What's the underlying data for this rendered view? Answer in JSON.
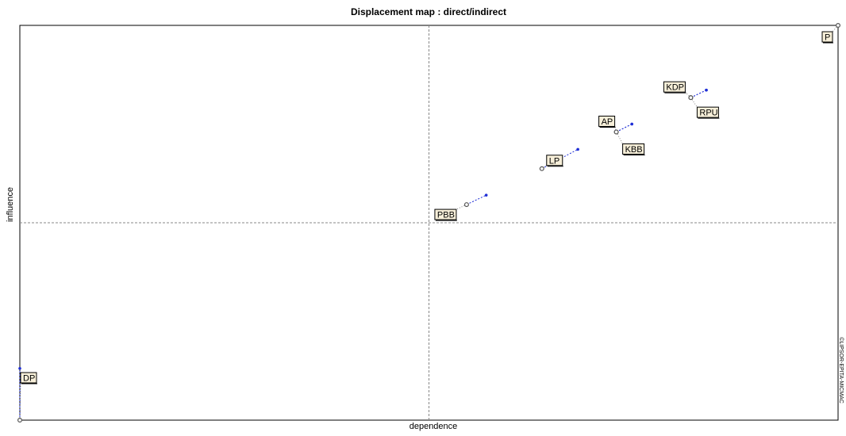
{
  "chart_data": {
    "type": "scatter",
    "title": "Displacement map :  direct/indirect",
    "xlabel": "dependence",
    "ylabel": "influence",
    "copyright": "©LIPSOR-EPITA-MICMAC",
    "xlim": [
      0,
      100
    ],
    "ylim": [
      0,
      100
    ],
    "reference_lines": {
      "x": 50,
      "y": 50
    },
    "grid": false,
    "colors": {
      "direct_marker": "#555555",
      "indirect_marker": "#1f2fd6",
      "label_fill": "#f7efd9",
      "frame": "#000000",
      "guide": "#888888"
    },
    "variables": [
      {
        "name": "P",
        "direct": [
          100,
          100
        ],
        "indirect": [
          100,
          100
        ]
      },
      {
        "name": "KDP",
        "direct": [
          82.0,
          81.7
        ],
        "indirect": [
          83.9,
          83.6
        ]
      },
      {
        "name": "RPU",
        "direct": [
          82.0,
          81.7
        ],
        "indirect": [
          83.9,
          83.6
        ]
      },
      {
        "name": "AP",
        "direct": [
          72.9,
          73.0
        ],
        "indirect": [
          74.8,
          75.0
        ]
      },
      {
        "name": "KBB",
        "direct": [
          72.9,
          73.0
        ],
        "indirect": [
          74.8,
          75.0
        ]
      },
      {
        "name": "LP",
        "direct": [
          63.8,
          63.7
        ],
        "indirect": [
          68.2,
          68.6
        ]
      },
      {
        "name": "PBB",
        "direct": [
          54.6,
          54.6
        ],
        "indirect": [
          57.0,
          57.0
        ]
      },
      {
        "name": "DP",
        "direct": [
          0,
          0
        ],
        "indirect": [
          0,
          13.1
        ]
      }
    ]
  }
}
